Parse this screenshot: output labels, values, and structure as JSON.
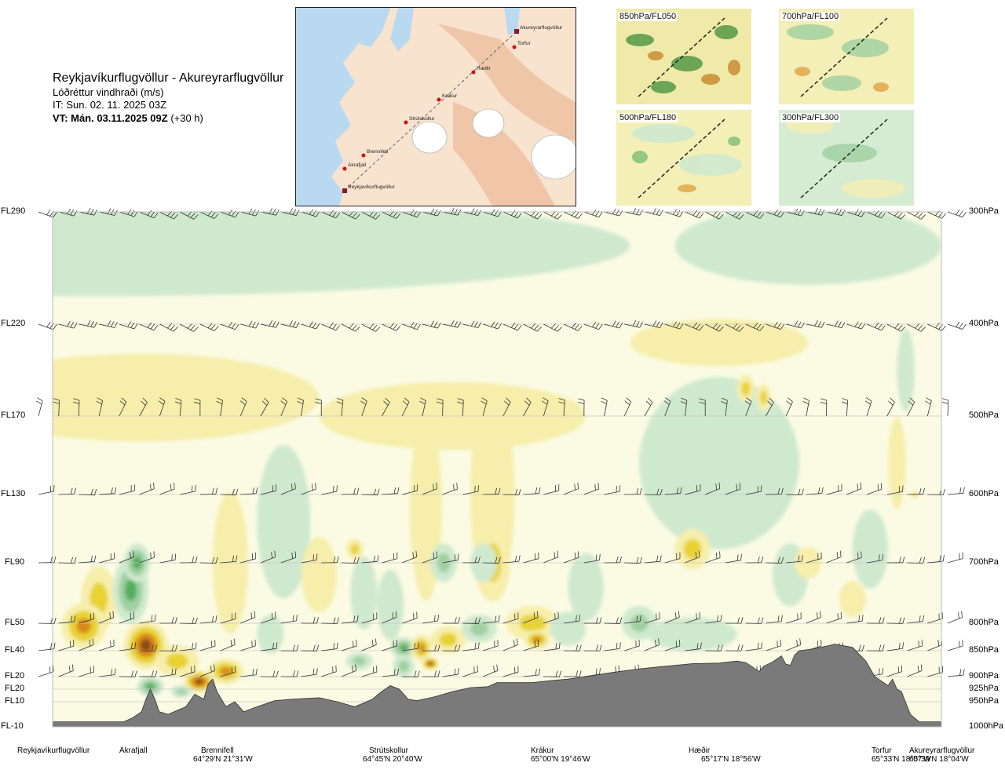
{
  "header": {
    "title": "Reykjavíkurflugvöllur - Akureyrarflugvöllur",
    "variable": "Lóðréttur vindhraði (m/s)",
    "it": "IT: Sun. 02. 11. 2025 03Z",
    "vt_bold": "VT: Mán. 03.11.2025 09Z",
    "vt_rest": " (+30 h)"
  },
  "route_map": {
    "points": [
      {
        "name": "Reykjavíkurflugvöllur",
        "type": "airport"
      },
      {
        "name": "Akrafjall",
        "type": "waypoint"
      },
      {
        "name": "Brennifell",
        "type": "waypoint"
      },
      {
        "name": "Strútskollur",
        "type": "waypoint"
      },
      {
        "name": "Krákur",
        "type": "waypoint"
      },
      {
        "name": "Hæðir",
        "type": "waypoint"
      },
      {
        "name": "Torfur",
        "type": "waypoint"
      },
      {
        "name": "Akureyrarflugvöllur",
        "type": "airport"
      }
    ]
  },
  "mini_maps": [
    {
      "label": "850hPa/FL050"
    },
    {
      "label": "700hPa/FL100"
    },
    {
      "label": "500hPa/FL180"
    },
    {
      "label": "300hPa/FL300"
    }
  ],
  "colors": {
    "strong_down": "#8a4a12",
    "mod_down": "#d98a1c",
    "weak_down": "#e8d230",
    "slight_down": "#f6eeaa",
    "neutral": "#fbfbe4",
    "slight_up": "#cfe9cf",
    "weak_up": "#9fd0a0",
    "mod_up": "#55ad5d",
    "strong_up": "#1d8a2e",
    "terrain": "#7a7a7a"
  },
  "chart_data": {
    "type": "heatmap",
    "title": "Lóðréttur vindhraði (m/s)",
    "y_left_labels": [
      "FL290",
      "FL220",
      "FL170",
      "FL130",
      "FL90",
      "FL50",
      "FL40",
      "FL20",
      "FL20",
      "FL10",
      "FL-10"
    ],
    "y_right_labels": [
      "300hPa",
      "400hPa",
      "500hPa",
      "600hPa",
      "700hPa",
      "800hPa",
      "850hPa",
      "900hPa",
      "925hPa",
      "950hPa",
      "1000hPa"
    ],
    "pressure_levels_hpa": [
      300,
      400,
      500,
      600,
      700,
      800,
      850,
      900,
      925,
      950,
      1000
    ],
    "waypoints": [
      {
        "name": "Reykjavíkurflugvöllur",
        "coord": "",
        "dist": 0.0
      },
      {
        "name": "Akrafjall",
        "coord": "",
        "dist": 0.107
      },
      {
        "name": "Brennifell",
        "coord": "64°29'N 21°31'W",
        "dist": 0.21
      },
      {
        "name": "Strútskollur",
        "coord": "64°45'N 20°40'W",
        "dist": 0.41
      },
      {
        "name": "Krákur",
        "coord": "65°00'N 19°46'W",
        "dist": 0.6
      },
      {
        "name": "Hæðir",
        "coord": "65°17'N 18°56'W",
        "dist": 0.79
      },
      {
        "name": "Torfur",
        "coord": "65°33'N 18°07'W",
        "dist": 0.94
      },
      {
        "name": "Akureyrarflugvöllur",
        "coord": "65°39'N 18°04'W",
        "dist": 1.0
      }
    ],
    "wind_barb_levels_hpa": [
      300,
      400,
      500,
      600,
      700,
      800,
      850,
      900
    ],
    "terrain_profile_hpa": [
      [
        0.0,
        990
      ],
      [
        0.08,
        990
      ],
      [
        0.09,
        982
      ],
      [
        0.1,
        970
      ],
      [
        0.105,
        945
      ],
      [
        0.11,
        925
      ],
      [
        0.115,
        945
      ],
      [
        0.12,
        970
      ],
      [
        0.13,
        975
      ],
      [
        0.15,
        960
      ],
      [
        0.16,
        935
      ],
      [
        0.17,
        945
      ],
      [
        0.175,
        915
      ],
      [
        0.18,
        905
      ],
      [
        0.185,
        930
      ],
      [
        0.195,
        960
      ],
      [
        0.205,
        950
      ],
      [
        0.215,
        970
      ],
      [
        0.23,
        960
      ],
      [
        0.25,
        948
      ],
      [
        0.27,
        945
      ],
      [
        0.3,
        942
      ],
      [
        0.32,
        950
      ],
      [
        0.34,
        960
      ],
      [
        0.36,
        945
      ],
      [
        0.37,
        930
      ],
      [
        0.38,
        918
      ],
      [
        0.39,
        925
      ],
      [
        0.4,
        945
      ],
      [
        0.41,
        948
      ],
      [
        0.43,
        940
      ],
      [
        0.45,
        930
      ],
      [
        0.47,
        922
      ],
      [
        0.49,
        920
      ],
      [
        0.5,
        912
      ],
      [
        0.54,
        912
      ],
      [
        0.56,
        908
      ],
      [
        0.58,
        905
      ],
      [
        0.6,
        900
      ],
      [
        0.63,
        892
      ],
      [
        0.66,
        885
      ],
      [
        0.69,
        880
      ],
      [
        0.72,
        875
      ],
      [
        0.75,
        874
      ],
      [
        0.77,
        870
      ],
      [
        0.78,
        873
      ],
      [
        0.795,
        890
      ],
      [
        0.8,
        880
      ],
      [
        0.81,
        872
      ],
      [
        0.82,
        860
      ],
      [
        0.825,
        876
      ],
      [
        0.83,
        878
      ],
      [
        0.835,
        858
      ],
      [
        0.84,
        850
      ],
      [
        0.855,
        847
      ],
      [
        0.87,
        842
      ],
      [
        0.88,
        838
      ],
      [
        0.9,
        844
      ],
      [
        0.915,
        870
      ],
      [
        0.925,
        900
      ],
      [
        0.94,
        918
      ],
      [
        0.945,
        905
      ],
      [
        0.95,
        925
      ],
      [
        0.955,
        930
      ],
      [
        0.965,
        975
      ],
      [
        0.975,
        990
      ],
      [
        0.99,
        990
      ],
      [
        1.0,
        990
      ]
    ],
    "blobs": [
      {
        "x": 0.035,
        "p": 805,
        "w": 0.025,
        "h": 80,
        "v": -1.6
      },
      {
        "x": 0.052,
        "p": 760,
        "w": 0.02,
        "h": 110,
        "v": -1.0
      },
      {
        "x": 0.088,
        "p": 745,
        "w": 0.02,
        "h": 110,
        "v": 1.3
      },
      {
        "x": 0.095,
        "p": 700,
        "w": 0.015,
        "h": 60,
        "v": 1.6
      },
      {
        "x": 0.105,
        "p": 840,
        "w": 0.025,
        "h": 90,
        "v": -2.0
      },
      {
        "x": 0.14,
        "p": 870,
        "w": 0.025,
        "h": 60,
        "v": -1.1
      },
      {
        "x": 0.11,
        "p": 920,
        "w": 0.015,
        "h": 40,
        "v": 1.4
      },
      {
        "x": 0.145,
        "p": 930,
        "w": 0.012,
        "h": 25,
        "v": 1.2
      },
      {
        "x": 0.165,
        "p": 910,
        "w": 0.018,
        "h": 45,
        "v": -2.1
      },
      {
        "x": 0.195,
        "p": 890,
        "w": 0.02,
        "h": 50,
        "v": -1.3
      },
      {
        "x": 0.2,
        "p": 700,
        "w": 0.02,
        "h": 220,
        "v": -0.35
      },
      {
        "x": 0.245,
        "p": 820,
        "w": 0.015,
        "h": 70,
        "v": 0.5
      },
      {
        "x": 0.26,
        "p": 640,
        "w": 0.03,
        "h": 220,
        "v": 0.3
      },
      {
        "x": 0.3,
        "p": 720,
        "w": 0.02,
        "h": 120,
        "v": -0.3
      },
      {
        "x": 0.34,
        "p": 680,
        "w": 0.01,
        "h": 30,
        "v": -0.8
      },
      {
        "x": 0.35,
        "p": 750,
        "w": 0.015,
        "h": 120,
        "v": 0.5
      },
      {
        "x": 0.345,
        "p": 870,
        "w": 0.015,
        "h": 35,
        "v": 1.0
      },
      {
        "x": 0.38,
        "p": 770,
        "w": 0.015,
        "h": 120,
        "v": 0.6
      },
      {
        "x": 0.395,
        "p": 880,
        "w": 0.012,
        "h": 45,
        "v": 1.1
      },
      {
        "x": 0.395,
        "p": 845,
        "w": 0.015,
        "h": 40,
        "v": 1.6
      },
      {
        "x": 0.415,
        "p": 845,
        "w": 0.012,
        "h": 50,
        "v": -1.3
      },
      {
        "x": 0.425,
        "p": 875,
        "w": 0.01,
        "h": 25,
        "v": -1.9
      },
      {
        "x": 0.445,
        "p": 830,
        "w": 0.02,
        "h": 50,
        "v": -0.9
      },
      {
        "x": 0.42,
        "p": 620,
        "w": 0.018,
        "h": 260,
        "v": -0.3
      },
      {
        "x": 0.44,
        "p": 700,
        "w": 0.015,
        "h": 60,
        "v": 1.0
      },
      {
        "x": 0.48,
        "p": 810,
        "w": 0.02,
        "h": 50,
        "v": 0.8
      },
      {
        "x": 0.485,
        "p": 700,
        "w": 0.015,
        "h": 60,
        "v": 0.5
      },
      {
        "x": 0.495,
        "p": 700,
        "w": 0.02,
        "h": 120,
        "v": -1.0
      },
      {
        "x": 0.495,
        "p": 600,
        "w": 0.025,
        "h": 280,
        "v": -0.3
      },
      {
        "x": 0.54,
        "p": 800,
        "w": 0.03,
        "h": 60,
        "v": -1.2
      },
      {
        "x": 0.545,
        "p": 830,
        "w": 0.015,
        "h": 35,
        "v": -1.6
      },
      {
        "x": 0.58,
        "p": 810,
        "w": 0.02,
        "h": 60,
        "v": 0.6
      },
      {
        "x": 0.6,
        "p": 740,
        "w": 0.02,
        "h": 110,
        "v": 0.4
      },
      {
        "x": 0.66,
        "p": 800,
        "w": 0.02,
        "h": 60,
        "v": 0.7
      },
      {
        "x": 0.72,
        "p": 680,
        "w": 0.02,
        "h": 60,
        "v": -0.9
      },
      {
        "x": 0.75,
        "p": 560,
        "w": 0.09,
        "h": 220,
        "v": 0.25
      },
      {
        "x": 0.72,
        "p": 820,
        "w": 0.05,
        "h": 60,
        "v": 0.4
      },
      {
        "x": 0.78,
        "p": 470,
        "w": 0.01,
        "h": 30,
        "v": -0.7
      },
      {
        "x": 0.8,
        "p": 480,
        "w": 0.008,
        "h": 30,
        "v": -0.7
      },
      {
        "x": 0.83,
        "p": 720,
        "w": 0.02,
        "h": 100,
        "v": 0.3
      },
      {
        "x": 0.85,
        "p": 700,
        "w": 0.015,
        "h": 50,
        "v": -0.4
      },
      {
        "x": 0.9,
        "p": 760,
        "w": 0.015,
        "h": 60,
        "v": -0.5
      },
      {
        "x": 0.92,
        "p": 680,
        "w": 0.02,
        "h": 120,
        "v": 0.3
      },
      {
        "x": 0.95,
        "p": 560,
        "w": 0.01,
        "h": 120,
        "v": -0.2
      },
      {
        "x": 0.96,
        "p": 450,
        "w": 0.01,
        "h": 90,
        "v": 0.4
      },
      {
        "x": 0.97,
        "p": 600,
        "w": 0.004,
        "h": 10,
        "v": -0.7
      },
      {
        "x": 0.1,
        "p": 480,
        "w": 0.2,
        "h": 100,
        "v": -0.2
      },
      {
        "x": 0.45,
        "p": 500,
        "w": 0.15,
        "h": 80,
        "v": -0.2
      },
      {
        "x": 0.75,
        "p": 420,
        "w": 0.1,
        "h": 50,
        "v": -0.25
      },
      {
        "x": 0.05,
        "p": 330,
        "w": 0.6,
        "h": 120,
        "v": 0.25
      },
      {
        "x": 0.85,
        "p": 330,
        "w": 0.15,
        "h": 80,
        "v": 0.18
      }
    ]
  }
}
